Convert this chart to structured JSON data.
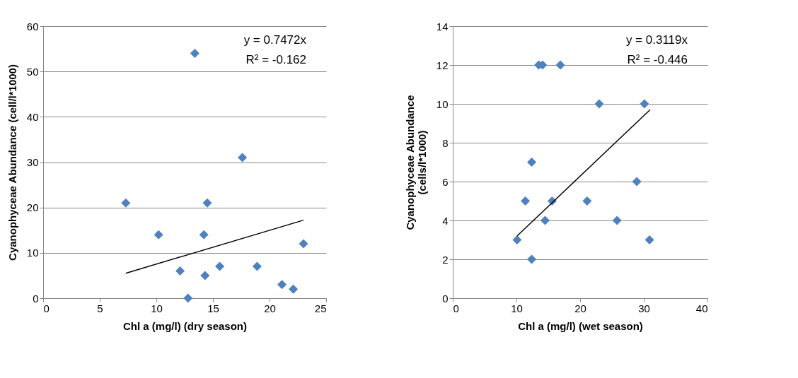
{
  "chart_data": [
    {
      "type": "scatter",
      "xlabel": "Chl a (mg/l)  (dry season)",
      "ylabel": "Cyanophyceae Abundance (cell/l*1000)",
      "annotations": [
        "y = 0.7472x",
        "R² = -0.162"
      ],
      "xlim": [
        0,
        25
      ],
      "xticks": [
        0,
        5,
        10,
        15,
        20,
        25
      ],
      "ylim": [
        0,
        60
      ],
      "yticks": [
        0,
        10,
        20,
        30,
        40,
        50,
        60
      ],
      "grid": "y",
      "series": [
        {
          "marker": "diamond",
          "color": "#4f81bd",
          "x": [
            7.3,
            10.2,
            13.4,
            12.1,
            12.8,
            14.2,
            14.5,
            14.3,
            15.6,
            17.6,
            18.9,
            21.1,
            22.1,
            23.0
          ],
          "values": [
            21,
            14,
            54,
            6,
            0,
            14,
            21,
            5,
            7,
            31,
            7,
            3,
            2,
            12
          ]
        },
        {
          "type": "line",
          "marker": "none",
          "color": "#000000",
          "x": [
            7.3,
            23.0
          ],
          "values": [
            5.5,
            17.2
          ]
        }
      ]
    },
    {
      "type": "scatter",
      "xlabel": "Chl a (mg/l) (wet season)",
      "ylabel": "Cyanophyceae Abundance\n(cells/l*1000)",
      "annotations": [
        "y = 0.3119x",
        "R² = -0.446"
      ],
      "xlim": [
        0,
        40
      ],
      "xticks": [
        0,
        10,
        20,
        30,
        40
      ],
      "ylim": [
        0,
        14
      ],
      "yticks": [
        0,
        2,
        4,
        6,
        8,
        10,
        12,
        14
      ],
      "grid": "y",
      "series": [
        {
          "marker": "diamond",
          "color": "#4f81bd",
          "x": [
            10.1,
            12.4,
            12.4,
            11.4,
            13.5,
            14.1,
            16.9,
            14.5,
            15.6,
            21.1,
            23.0,
            25.8,
            28.9,
            30.1,
            30.9
          ],
          "values": [
            3,
            2,
            7,
            5,
            12,
            12,
            12,
            4,
            5,
            5,
            10,
            4,
            6,
            10,
            3
          ]
        },
        {
          "type": "line",
          "marker": "none",
          "color": "#000000",
          "x": [
            10.1,
            31.0
          ],
          "values": [
            3.2,
            9.7
          ]
        }
      ]
    }
  ]
}
